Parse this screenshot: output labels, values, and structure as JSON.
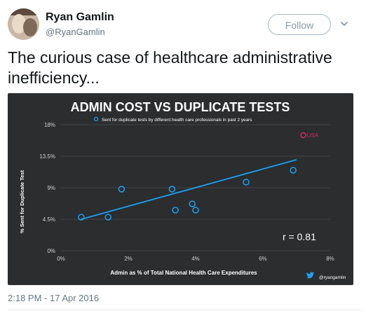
{
  "user": {
    "name": "Ryan Gamlin",
    "handle": "@RyanGamlin",
    "follow_label": "Follow"
  },
  "tweet": {
    "text": "The curious case of healthcare administrative inefficiency...",
    "timestamp": "2:18 PM - 17 Apr 2016"
  },
  "icons": {
    "more": "chevron-down-icon",
    "twitter": "twitter-bird-icon"
  },
  "colors": {
    "chart_bg": "#2b2d2f",
    "accent": "#1da1f2",
    "usa_label": "#e0245e"
  },
  "chart_data": {
    "type": "scatter",
    "title": "ADMIN COST VS DUPLICATE TESTS",
    "legend": "Sent for duplicate tests by different health care professionals in past 2 years",
    "xlabel": "Admin as % of Total National Health Care Expenditures",
    "ylabel": "% Sent for Duplicate Test",
    "x_ticks": [
      "0%",
      "2%",
      "4%",
      "6%",
      "8%"
    ],
    "y_ticks": [
      "0%",
      "4.5%",
      "9%",
      "13.5%",
      "18%"
    ],
    "xlim": [
      0,
      8
    ],
    "ylim": [
      0,
      18
    ],
    "points": [
      {
        "x": 0.6,
        "y": 4.8
      },
      {
        "x": 1.4,
        "y": 4.8
      },
      {
        "x": 1.8,
        "y": 8.8
      },
      {
        "x": 3.3,
        "y": 8.8
      },
      {
        "x": 3.4,
        "y": 5.8
      },
      {
        "x": 3.9,
        "y": 6.7
      },
      {
        "x": 4.0,
        "y": 5.8
      },
      {
        "x": 5.5,
        "y": 9.8
      },
      {
        "x": 6.9,
        "y": 11.5
      },
      {
        "x": 7.2,
        "y": 16.5,
        "label": "USA"
      }
    ],
    "trendline": {
      "x": [
        0.6,
        7.0
      ],
      "y": [
        4.5,
        13.0
      ]
    },
    "annotation": "r = 0.81",
    "credit": "@ryangamlin"
  }
}
